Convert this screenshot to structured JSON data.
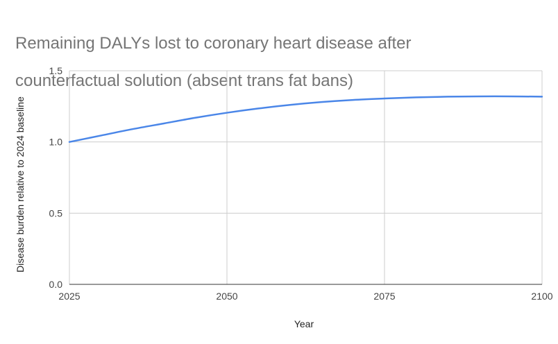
{
  "chart_data": {
    "type": "line",
    "title": "Remaining DALYs lost to coronary heart disease after counterfactual solution (absent trans fat bans)",
    "title_lines": [
      "Remaining DALYs lost to coronary heart disease after",
      "counterfactual solution (absent trans fat bans)"
    ],
    "xlabel": "Year",
    "ylabel": "Disease burden relative to 2024 baseline",
    "xlim": [
      2025,
      2100
    ],
    "ylim": [
      0,
      1.5
    ],
    "x_ticks": [
      "2025",
      "2050",
      "2075",
      "2100"
    ],
    "x_tick_values": [
      2025,
      2050,
      2075,
      2100
    ],
    "y_ticks": [
      "0.0",
      "0.5",
      "1.0",
      "1.5"
    ],
    "y_tick_values": [
      0,
      0.5,
      1.0,
      1.5
    ],
    "grid": true,
    "legend": "none",
    "series": [
      {
        "color": "#4a86e8",
        "x": [
          2025,
          2030,
          2035,
          2040,
          2045,
          2050,
          2055,
          2060,
          2065,
          2070,
          2075,
          2080,
          2085,
          2090,
          2095,
          2100
        ],
        "y": [
          1.0,
          1.045,
          1.09,
          1.13,
          1.17,
          1.205,
          1.235,
          1.26,
          1.28,
          1.295,
          1.305,
          1.313,
          1.318,
          1.32,
          1.32,
          1.318
        ]
      }
    ]
  }
}
